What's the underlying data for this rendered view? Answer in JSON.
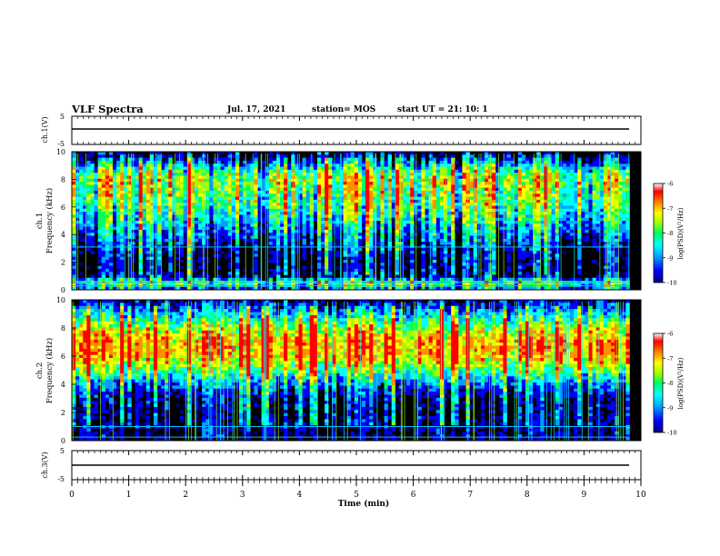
{
  "header": {
    "title": "VLF Spectra",
    "date": "Jul. 17, 2021",
    "station": "station= MOS",
    "start": "start UT =  21: 10: 1"
  },
  "panels": {
    "ch1_voltage": {
      "label": "ch.1(V)",
      "ticks": [
        "5",
        "-5"
      ]
    },
    "ch3_voltage": {
      "label": "ch.3(V)",
      "ticks": [
        "5",
        "-5"
      ]
    },
    "spec1": {
      "label1": "ch.1",
      "label2": "Frequency (kHz)"
    },
    "spec2": {
      "label1": "ch.2",
      "label2": "Frequency (kHz)"
    }
  },
  "colorbar": {
    "ticks": [
      "-6",
      "-7",
      "-8",
      "-9",
      "-10"
    ],
    "label": "log(PSD)(V²/Hz)"
  },
  "colors": {
    "background": "#000000",
    "scale": [
      "#00007f",
      "#0000ff",
      "#00a0ff",
      "#00ffff",
      "#00ff60",
      "#a0ff00",
      "#ffff00",
      "#ff9000",
      "#ff0000",
      "#ffffff"
    ]
  },
  "chart_data": [
    {
      "type": "heatmap",
      "title": "VLF Spectra",
      "panel": "ch.1",
      "xlabel": "Time (min)",
      "ylabel": "Frequency (kHz)",
      "x_range": [
        0,
        10
      ],
      "y_range": [
        0,
        10
      ],
      "x_ticks": [
        "0",
        "1",
        "2",
        "3",
        "4",
        "5",
        "6",
        "7",
        "8",
        "9",
        "10"
      ],
      "y_ticks": [
        "0",
        "2",
        "4",
        "6",
        "8",
        "10"
      ],
      "data_end_min": 9.8,
      "color_range": [
        -10,
        -6
      ],
      "band_profile_freq_khz": [
        0,
        0.5,
        1,
        2,
        3,
        4,
        5,
        6,
        7,
        8,
        8.5,
        9,
        9.5,
        10
      ],
      "band_profile_logpsd": [
        -9.2,
        -7.4,
        -9.8,
        -10,
        -9.6,
        -9.0,
        -8.4,
        -7.9,
        -7.6,
        -7.4,
        -7.8,
        -8.6,
        -9.4,
        -10
      ]
    },
    {
      "type": "heatmap",
      "panel": "ch.2",
      "xlabel": "Time (min)",
      "ylabel": "Frequency (kHz)",
      "x_range": [
        0,
        10
      ],
      "y_range": [
        0,
        10
      ],
      "x_ticks": [
        "0",
        "1",
        "2",
        "3",
        "4",
        "5",
        "6",
        "7",
        "8",
        "9",
        "10"
      ],
      "y_ticks": [
        "0",
        "2",
        "4",
        "6",
        "8",
        "10"
      ],
      "data_end_min": 9.8,
      "color_range": [
        -10,
        -6
      ],
      "band_profile_freq_khz": [
        0,
        1,
        2,
        3,
        4,
        5,
        6,
        7,
        8,
        9,
        10
      ],
      "band_profile_logpsd": [
        -9.8,
        -9.6,
        -9.8,
        -9.6,
        -8.8,
        -7.6,
        -6.6,
        -6.5,
        -7.2,
        -8.4,
        -9.6
      ]
    },
    {
      "type": "line",
      "panel": "ch.1(V)",
      "x_range": [
        0,
        10
      ],
      "ylim": [
        -5,
        5
      ],
      "level_v": 0
    },
    {
      "type": "line",
      "panel": "ch.3(V)",
      "x_range": [
        0,
        10
      ],
      "ylim": [
        -5,
        5
      ],
      "level_v": 0
    }
  ]
}
